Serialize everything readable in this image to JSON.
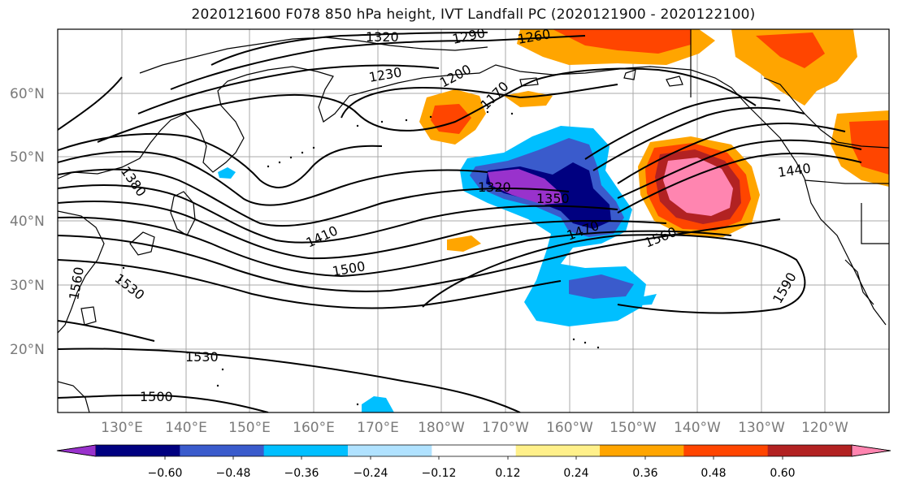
{
  "title": "2020121600 F078 850 hPa height, IVT Landfall PC (2020121900 - 2020122100)",
  "map": {
    "lat_labels": [
      "60°N",
      "50°N",
      "40°N",
      "30°N",
      "20°N"
    ],
    "lon_labels": [
      "130°E",
      "140°E",
      "150°E",
      "160°E",
      "170°E",
      "180°W",
      "170°W",
      "160°W",
      "150°W",
      "140°W",
      "130°W",
      "120°W"
    ],
    "contour_labels": [
      "1320",
      "1290",
      "1260",
      "1230",
      "1200",
      "1170",
      "1380",
      "1320",
      "1350",
      "1440",
      "1410",
      "1470",
      "1560",
      "1500",
      "1530",
      "1590",
      "1560",
      "1530",
      "1500"
    ]
  },
  "colorbar": {
    "ticks": [
      "−0.60",
      "−0.48",
      "−0.36",
      "−0.24",
      "−0.12",
      "0.12",
      "0.24",
      "0.36",
      "0.48",
      "0.60"
    ],
    "colors": [
      "#9932cc",
      "#000080",
      "#3a5bcc",
      "#00bfff",
      "#b0e2ff",
      "#ffffff",
      "#fff08a",
      "#ffa500",
      "#ff4500",
      "#b22222",
      "#ff85b0"
    ]
  }
}
